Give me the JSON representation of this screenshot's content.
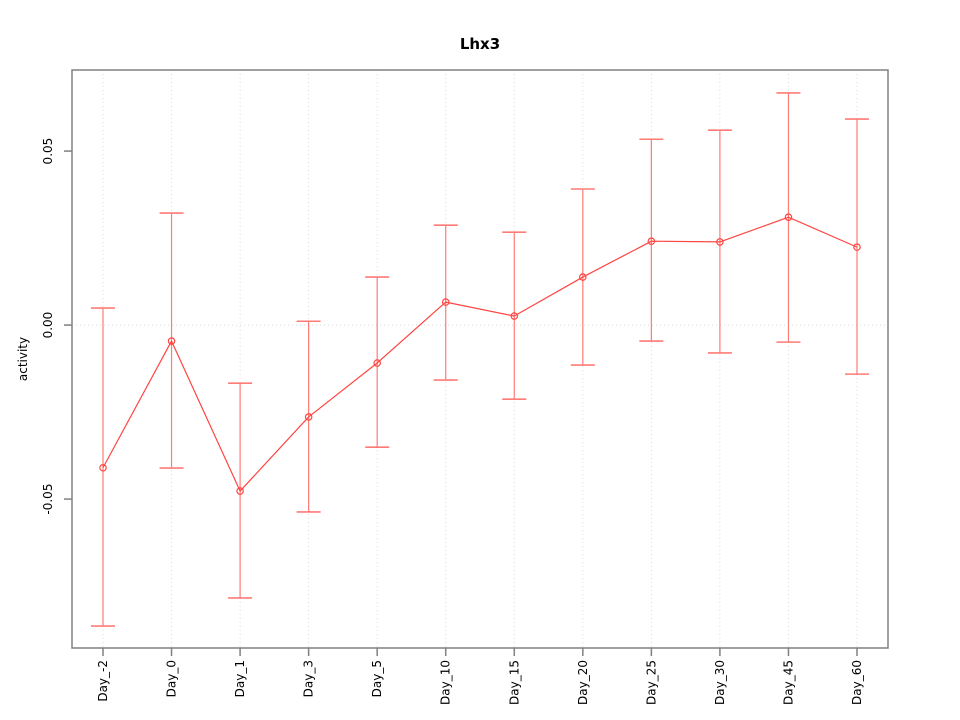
{
  "chart_data": {
    "type": "line",
    "title": "Lhx3",
    "xlabel": "",
    "ylabel": "activity",
    "categories": [
      "Day_-2",
      "Day_0",
      "Day_1",
      "Day_3",
      "Day_5",
      "Day_10",
      "Day_15",
      "Day_20",
      "Day_25",
      "Day_30",
      "Day_45",
      "Day_60"
    ],
    "series": [
      {
        "name": "activity",
        "values": [
          -0.041,
          -0.0046,
          -0.0477,
          -0.0264,
          -0.0109,
          0.0066,
          0.0026,
          0.0138,
          0.0241,
          0.0239,
          0.031,
          0.0224
        ],
        "lower": [
          -0.0865,
          -0.0411,
          -0.0784,
          -0.0537,
          -0.0351,
          -0.0158,
          -0.0213,
          -0.0115,
          -0.0046,
          -0.008,
          -0.0049,
          -0.0141
        ],
        "upper": [
          0.0049,
          0.0322,
          -0.0167,
          0.0011,
          0.0138,
          0.0287,
          0.0267,
          0.0391,
          0.0534,
          0.056,
          0.0667,
          0.0592
        ]
      }
    ],
    "ytick_labels": [
      "-0.05",
      "0.00",
      "0.05"
    ],
    "ytick_values": [
      -0.05,
      0.0,
      0.05
    ],
    "ylim": [
      -0.0928,
      0.0733
    ],
    "grid": {
      "vertical_dotted_per_category": true,
      "horizontal_dotted_at_zero": true
    },
    "legend": "none",
    "marker": "open-circle",
    "colors": {
      "line": "#ff4540",
      "errorbar": "#ff7b76",
      "point_stroke": "#ff4540",
      "point_fill": "#ffffff",
      "grid": "#d9d9d9",
      "frame": "#808080",
      "text": "#000000",
      "background": "#ffffff"
    }
  }
}
